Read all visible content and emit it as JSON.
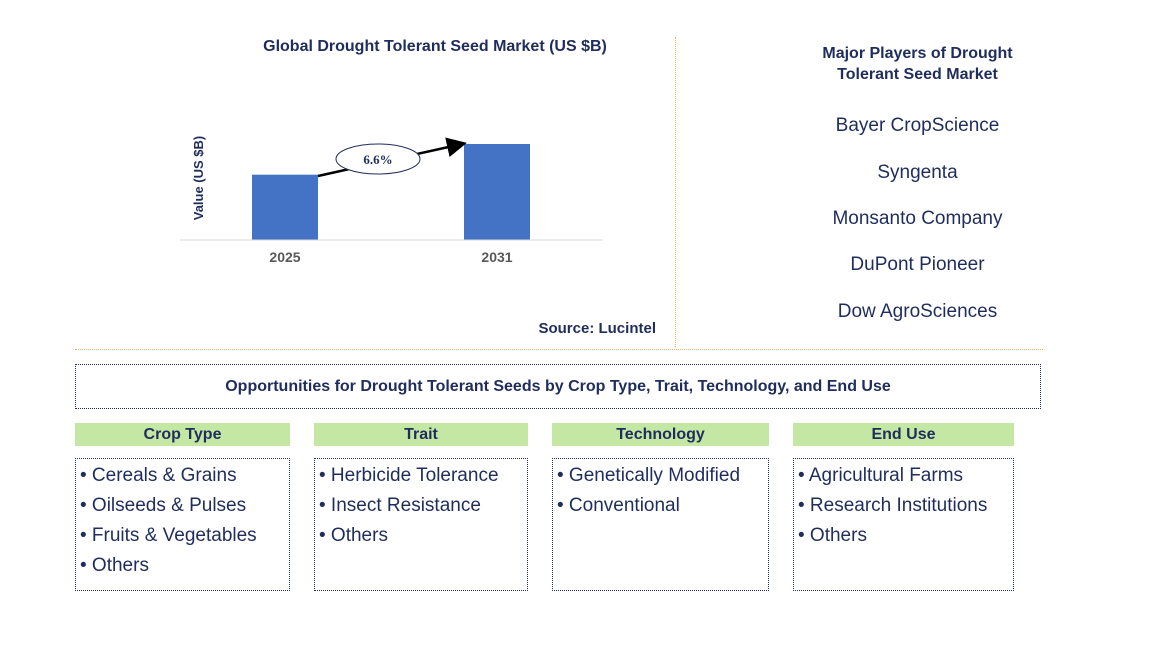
{
  "chart_data": {
    "type": "bar",
    "title": "Global Drought Tolerant Seed Market (US $B)",
    "ylabel": "Value (US $B)",
    "xlabel": "",
    "categories": [
      "2025",
      "2031"
    ],
    "values": [
      1.0,
      1.47
    ],
    "ylim": [
      0,
      1.47
    ],
    "annotation": "6.6%",
    "bar_color": "#4472c4"
  },
  "source": "Source: Lucintel",
  "players": {
    "title_line1": "Major Players of Drought",
    "title_line2": "Tolerant Seed Market",
    "items": [
      "Bayer CropScience",
      "Syngenta",
      "Monsanto Company",
      "DuPont Pioneer",
      "Dow AgroSciences"
    ]
  },
  "opportunities": {
    "title": "Opportunities for Drought Tolerant Seeds by Crop Type, Trait, Technology, and End Use",
    "header_color": "#c5e7a4",
    "categories": [
      {
        "name": "Crop Type",
        "items": [
          "• Cereals & Grains",
          "• Oilseeds & Pulses",
          "• Fruits & Vegetables",
          "• Others"
        ]
      },
      {
        "name": "Trait",
        "items": [
          "• Herbicide Tolerance",
          "• Insect Resistance",
          "• Others"
        ]
      },
      {
        "name": "Technology",
        "items": [
          "• Genetically Modified",
          "• Conventional"
        ]
      },
      {
        "name": "End Use",
        "items": [
          "• Agricultural Farms",
          "• Research Institutions",
          "• Others"
        ]
      }
    ]
  }
}
